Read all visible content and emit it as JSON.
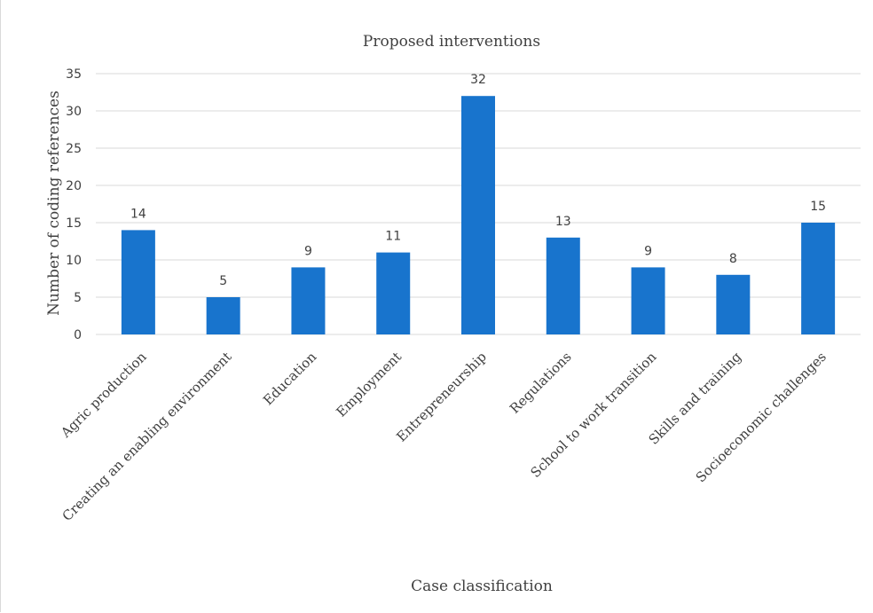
{
  "chart_data": {
    "type": "bar",
    "title": "Proposed interventions",
    "xlabel": "Case classification",
    "ylabel": "Number of coding references",
    "categories": [
      "Agric production",
      "Creating an enabling environment",
      "Education",
      "Employment",
      "Entrepreneurship",
      "Regulations",
      "School to work transition",
      "Skills and training",
      "Socioeconomic challenges"
    ],
    "values": [
      14,
      5,
      9,
      11,
      32,
      13,
      9,
      8,
      15
    ],
    "ylim": [
      0,
      35
    ],
    "yticks": [
      0,
      5,
      10,
      15,
      20,
      25,
      30,
      35
    ],
    "grid": true,
    "legend": "none",
    "bar_color": "#1874cd"
  }
}
